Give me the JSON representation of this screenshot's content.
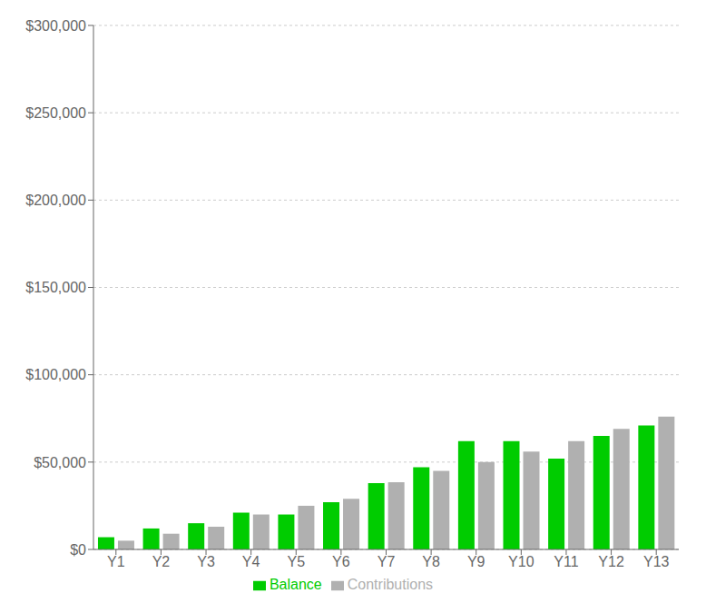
{
  "chart_data": {
    "type": "bar",
    "categories": [
      "Y1",
      "Y2",
      "Y3",
      "Y4",
      "Y5",
      "Y6",
      "Y7",
      "Y8",
      "Y9",
      "Y10",
      "Y11",
      "Y12",
      "Y13"
    ],
    "series": [
      {
        "name": "Balance",
        "color": "#00cc00",
        "values": [
          7000,
          12000,
          15000,
          21000,
          20000,
          27000,
          38000,
          47000,
          62000,
          62000,
          52000,
          65000,
          71000
        ]
      },
      {
        "name": "Contributions",
        "color": "#b0b0b0",
        "values": [
          5000,
          9000,
          13000,
          20000,
          25000,
          29000,
          38500,
          45000,
          50000,
          56000,
          62000,
          69000,
          76000
        ]
      }
    ],
    "ylim": [
      0,
      300000
    ],
    "yticks": [
      {
        "value": 0,
        "label": "$0"
      },
      {
        "value": 50000,
        "label": "$50,000"
      },
      {
        "value": 100000,
        "label": "$100,000"
      },
      {
        "value": 150000,
        "label": "$150,000"
      },
      {
        "value": 200000,
        "label": "$200,000"
      },
      {
        "value": 250000,
        "label": "$250,000"
      },
      {
        "value": 300000,
        "label": "$300,000"
      }
    ],
    "grid": true,
    "legend": "bottom"
  }
}
